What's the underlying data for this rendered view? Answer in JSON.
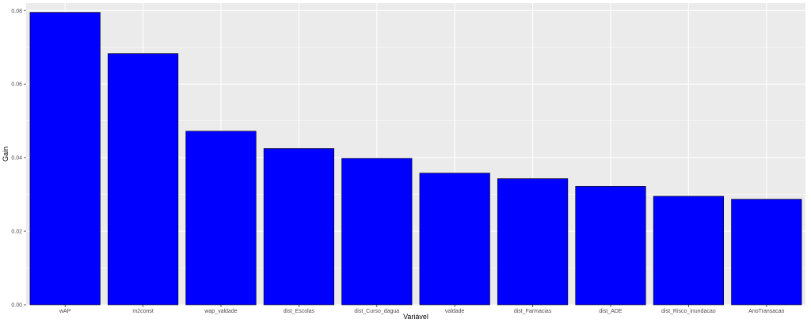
{
  "chart_data": {
    "type": "bar",
    "xlabel": "Variável",
    "ylabel": "Gain",
    "ylim": [
      0,
      0.082
    ],
    "yticks": [
      0,
      0.02,
      0.04,
      0.06,
      0.08
    ],
    "ytick_labels": [
      "0.00",
      "0.02",
      "0.04",
      "0.06",
      "0.08"
    ],
    "categories": [
      "wAP",
      "m2const",
      "wap_valdade",
      "dist_Escolas",
      "dist_Curso_dagua",
      "valdade",
      "dist_Farmacias",
      "dist_ADE",
      "dist_Risco_inundacao",
      "AnoTransacao"
    ],
    "values": [
      0.0795,
      0.0683,
      0.0472,
      0.0425,
      0.0398,
      0.0358,
      0.0343,
      0.0322,
      0.0295,
      0.0287
    ],
    "bar_color": "#0000ff",
    "bar_border": "#000000",
    "panel_background": "#ebebeb",
    "grid": true,
    "grid_color": "#ffffff",
    "legend": "none"
  }
}
